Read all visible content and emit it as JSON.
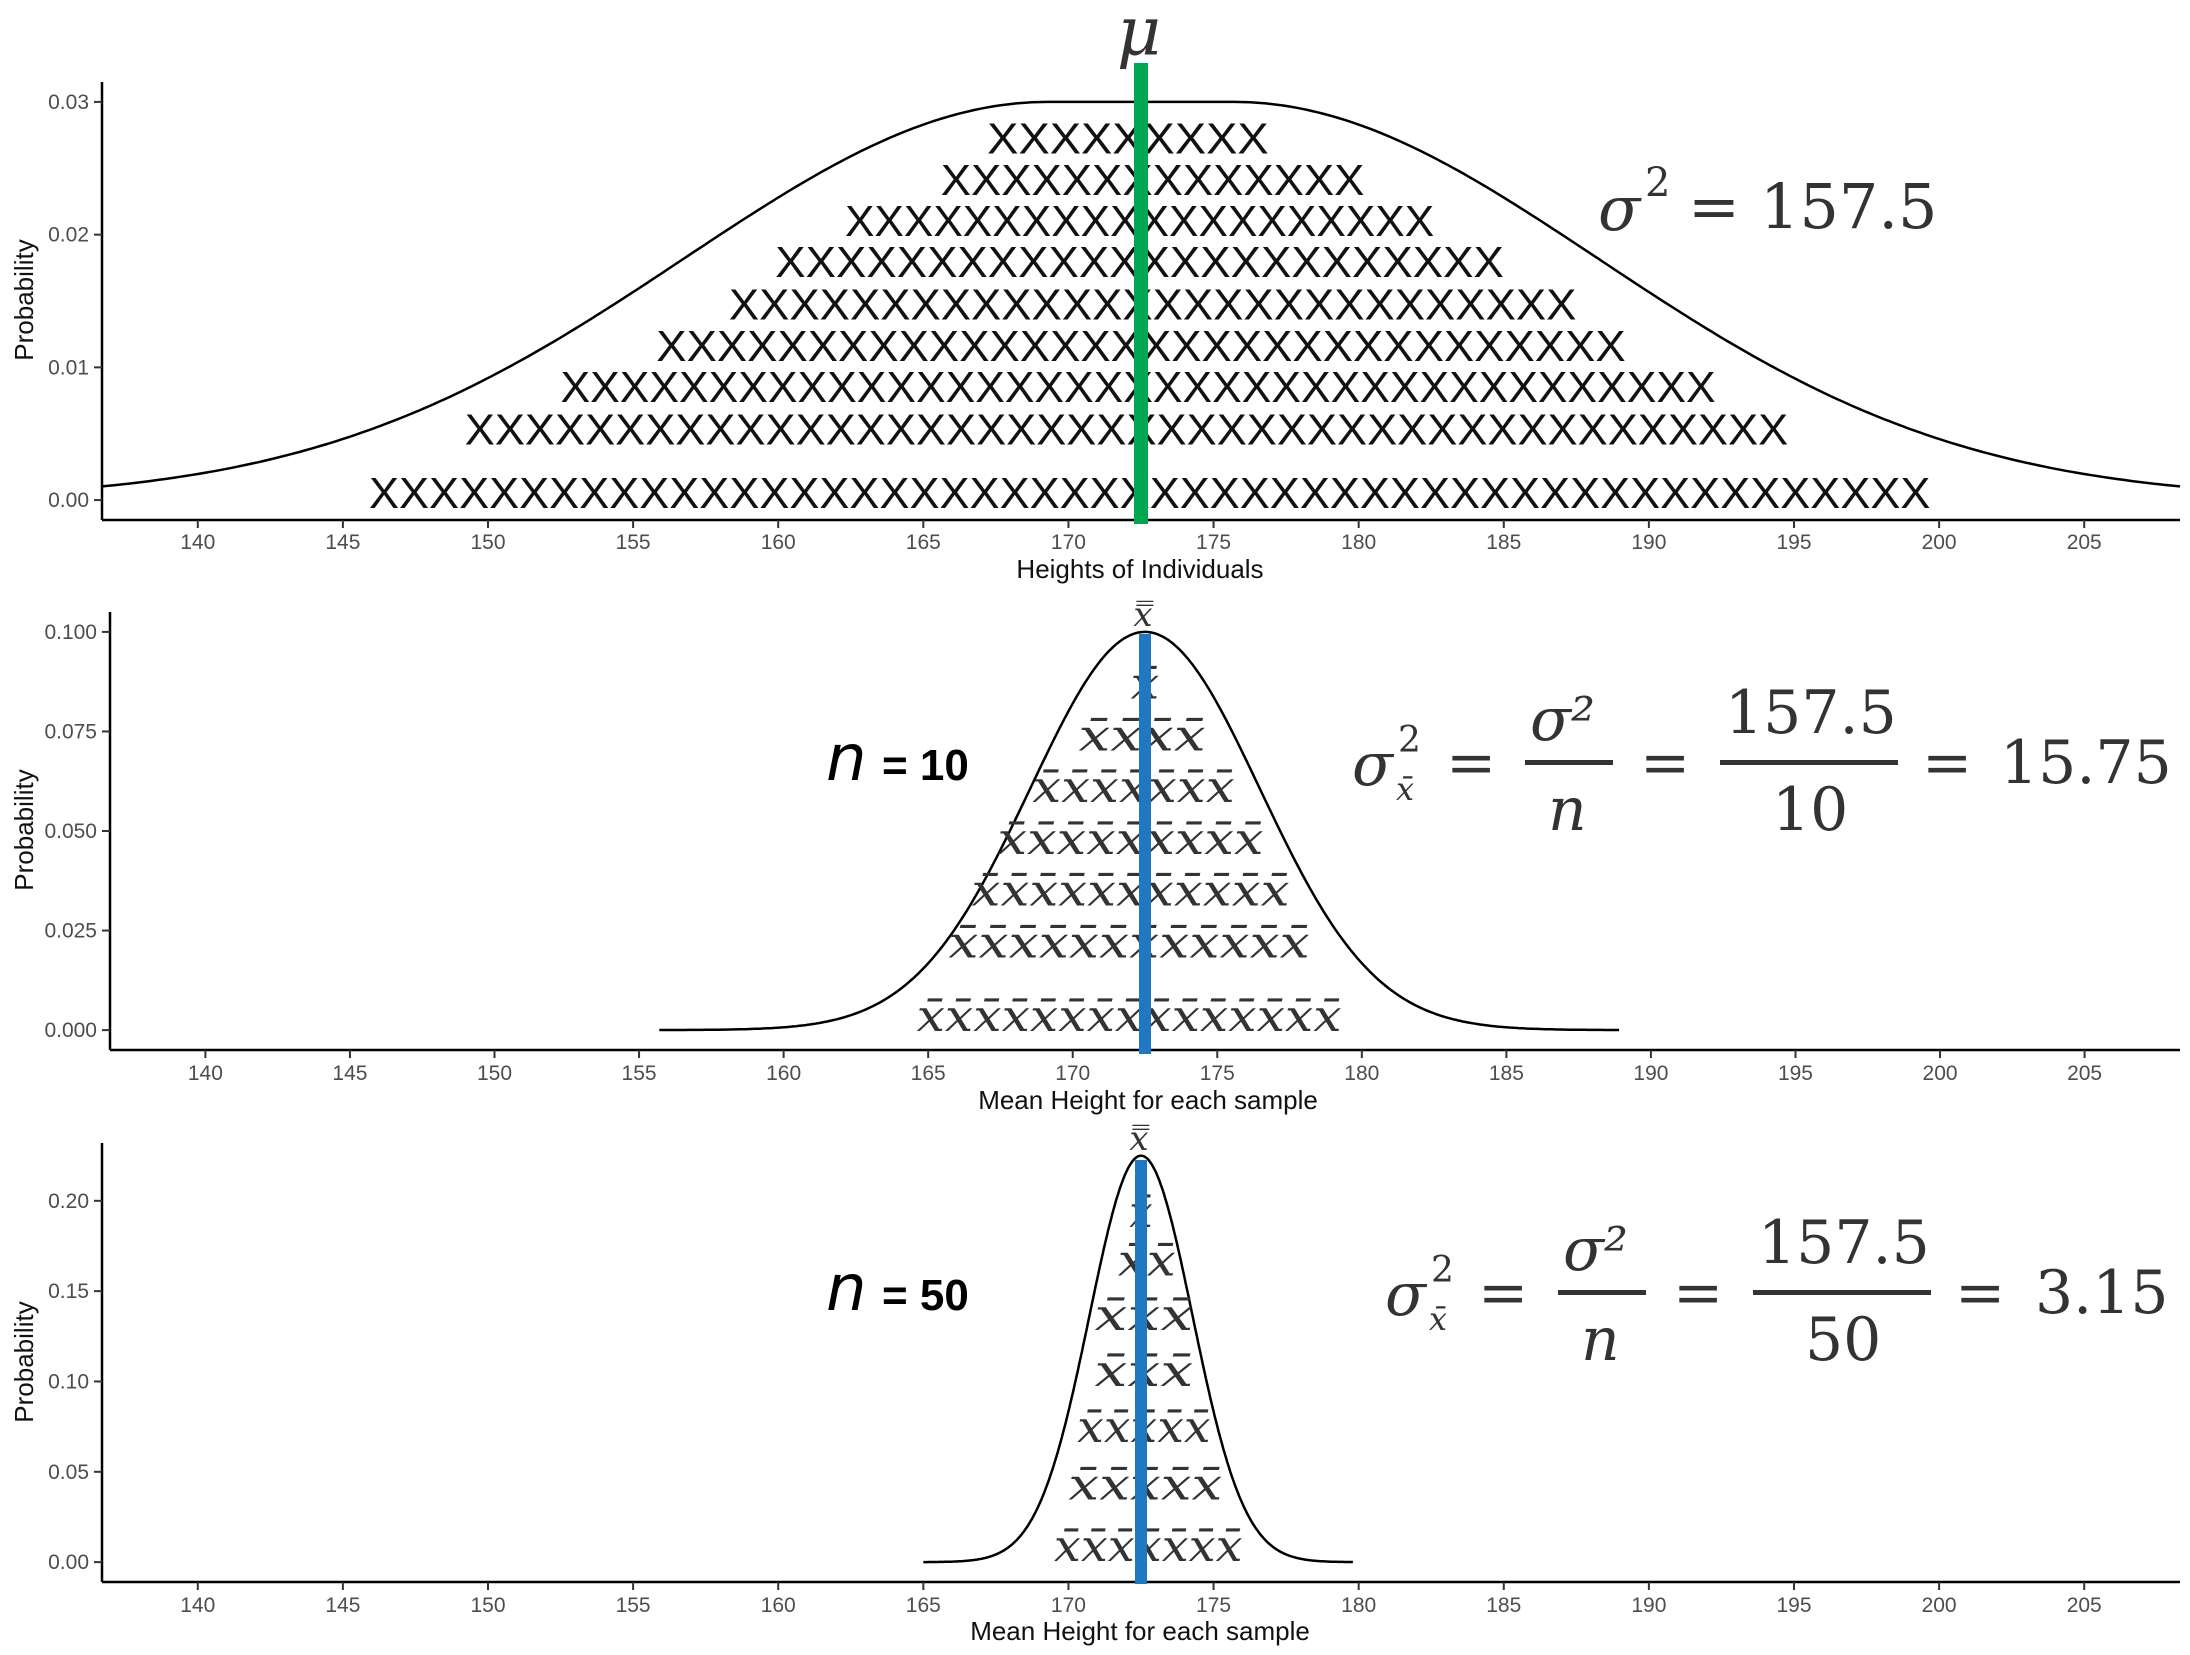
{
  "chart_data": [
    {
      "type": "area",
      "ylabel": "Probability",
      "xlabel": "Heights of Individuals",
      "xlim": [
        136.7,
        208.3
      ],
      "ylim": [
        -0.0015,
        0.0315
      ],
      "x_ticks": [
        "140",
        "145",
        "150",
        "155",
        "160",
        "165",
        "170",
        "175",
        "180",
        "185",
        "190",
        "195",
        "200",
        "205"
      ],
      "y_ticks": [
        "0.00",
        "0.01",
        "0.02",
        "0.03"
      ],
      "curve": {
        "mean": 172.5,
        "sd": 12.55,
        "peak": 0.03,
        "flat_top": true
      },
      "center_line": {
        "label": "μ",
        "x": 172.5,
        "color": "#00a651"
      },
      "marker": "X",
      "marker_rows": [
        {
          "y": 0.0273,
          "from": 167.2,
          "to": 176.9
        },
        {
          "y": 0.0242,
          "from": 165.6,
          "to": 180.2
        },
        {
          "y": 0.0211,
          "from": 162.3,
          "to": 182.6
        },
        {
          "y": 0.018,
          "from": 159.9,
          "to": 185.0
        },
        {
          "y": 0.0148,
          "from": 158.3,
          "to": 187.5
        },
        {
          "y": 0.0117,
          "from": 155.8,
          "to": 189.2
        },
        {
          "y": 0.0086,
          "from": 152.5,
          "to": 192.3
        },
        {
          "y": 0.0054,
          "from": 149.2,
          "to": 194.8
        },
        {
          "y": 0.0006,
          "from": 145.9,
          "to": 199.7
        }
      ],
      "annotation": {
        "symbol": "σ",
        "exponent": "2",
        "equals": "=",
        "value": "157.5"
      }
    },
    {
      "type": "area",
      "ylabel": "Probability",
      "xlabel": "Mean Height for each sample",
      "xlim": [
        136.7,
        208.3
      ],
      "ylim": [
        -0.005,
        0.105
      ],
      "x_ticks": [
        "140",
        "145",
        "150",
        "155",
        "160",
        "165",
        "170",
        "175",
        "180",
        "185",
        "190",
        "195",
        "200",
        "205"
      ],
      "y_ticks": [
        "0.000",
        "0.025",
        "0.050",
        "0.075",
        "0.100"
      ],
      "curve": {
        "mean": 172.5,
        "sd": 3.97,
        "peak": 0.1,
        "x_range": [
          155.7,
          188.9
        ]
      },
      "center_line": {
        "label": "x̿",
        "x": 172.5,
        "color": "#1f78c1"
      },
      "marker": "x̄",
      "marker_rows": [
        {
          "y": 0.0875,
          "from": 172.0,
          "to": 173.0
        },
        {
          "y": 0.0745,
          "from": 170.2,
          "to": 174.6
        },
        {
          "y": 0.0615,
          "from": 168.6,
          "to": 175.6
        },
        {
          "y": 0.0485,
          "from": 167.4,
          "to": 176.6
        },
        {
          "y": 0.0355,
          "from": 166.5,
          "to": 177.5
        },
        {
          "y": 0.0225,
          "from": 165.7,
          "to": 178.2
        },
        {
          "y": 0.004,
          "from": 164.6,
          "to": 179.3
        }
      ],
      "n_label": {
        "n": "n",
        "eq": "= 10"
      },
      "annotation": {
        "lhs": "σ",
        "lhs_sup": "2",
        "lhs_sub": "x̄",
        "equals": "=",
        "frac1_num": "σ²",
        "frac1_den": "n",
        "frac2_num": "157.5",
        "frac2_den": "10",
        "result": "15.75"
      }
    },
    {
      "type": "area",
      "ylabel": "Probability",
      "xlabel": "Mean Height for each sample",
      "xlim": [
        136.7,
        208.3
      ],
      "ylim": [
        -0.011,
        0.232
      ],
      "x_ticks": [
        "140",
        "145",
        "150",
        "155",
        "160",
        "165",
        "170",
        "175",
        "180",
        "185",
        "190",
        "195",
        "200",
        "205"
      ],
      "y_ticks": [
        "0.00",
        "0.05",
        "0.10",
        "0.15",
        "0.20"
      ],
      "curve": {
        "mean": 172.5,
        "sd": 1.775,
        "peak": 0.225,
        "x_range": [
          165.0,
          179.8
        ]
      },
      "center_line": {
        "label": "x̿",
        "x": 172.5,
        "color": "#1f78c1"
      },
      "marker": "x̄",
      "marker_rows": [
        {
          "y": 0.195,
          "from": 172.1,
          "to": 172.9
        },
        {
          "y": 0.168,
          "from": 171.7,
          "to": 173.7
        },
        {
          "y": 0.138,
          "from": 170.9,
          "to": 174.3
        },
        {
          "y": 0.107,
          "from": 170.9,
          "to": 174.3
        },
        {
          "y": 0.076,
          "from": 170.3,
          "to": 174.9
        },
        {
          "y": 0.044,
          "from": 170.0,
          "to": 175.3
        },
        {
          "y": 0.01,
          "from": 169.5,
          "to": 176.0
        }
      ],
      "n_label": {
        "n": "n",
        "eq": "= 50"
      },
      "annotation": {
        "lhs": "σ",
        "lhs_sup": "2",
        "lhs_sub": "x̄",
        "equals": "=",
        "frac1_num": "σ²",
        "frac1_den": "n",
        "frac2_num": "157.5",
        "frac2_den": "50",
        "result": "3.15"
      }
    }
  ]
}
